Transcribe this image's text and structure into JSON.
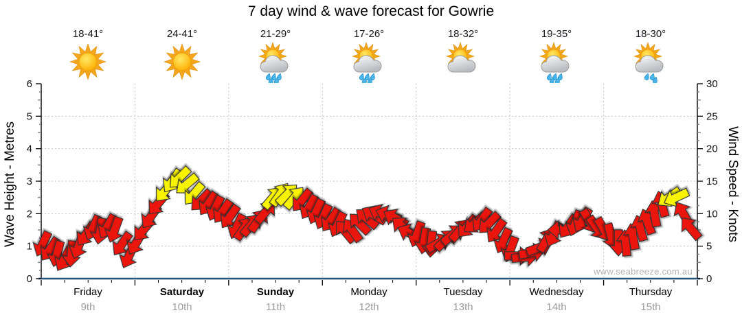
{
  "page": {
    "title": "7 day wind & wave forecast for Gowrie",
    "watermark": "www.seabreeze.com.au"
  },
  "days": [
    {
      "name": "Friday",
      "date": "9th",
      "temp": "18-41°",
      "icon": "sunny"
    },
    {
      "name": "Saturday",
      "date": "10th",
      "temp": "24-41°",
      "icon": "sunny"
    },
    {
      "name": "Sunday",
      "date": "11th",
      "temp": "21-29°",
      "icon": "showers"
    },
    {
      "name": "Monday",
      "date": "12th",
      "temp": "17-26°",
      "icon": "showers"
    },
    {
      "name": "Tuesday",
      "date": "13th",
      "temp": "18-32°",
      "icon": "partly-cloudy"
    },
    {
      "name": "Wednesday",
      "date": "14th",
      "temp": "19-35°",
      "icon": "showers"
    },
    {
      "name": "Thursday",
      "date": "15th",
      "temp": "18-30°",
      "icon": "showers-light"
    }
  ],
  "chart_data": {
    "type": "wind-arrow-timeseries",
    "title": "7 day wind & wave forecast for Gowrie",
    "left_axis": {
      "label": "Wave Height - Metres",
      "min": 0,
      "max": 6,
      "ticks": [
        0,
        1,
        2,
        3,
        4,
        5,
        6
      ]
    },
    "right_axis": {
      "label": "Wind Speed - Knots",
      "min": 0,
      "max": 30,
      "ticks": [
        0,
        5,
        10,
        15,
        20,
        25,
        30
      ]
    },
    "x_axis": {
      "categories": [
        "Friday 9th",
        "Saturday 10th",
        "Sunday 11th",
        "Monday 12th",
        "Tuesday 13th",
        "Wednesday 14th",
        "Thursday 15th"
      ],
      "weekend_bold": [
        "Saturday",
        "Sunday"
      ],
      "points_per_day": 13,
      "tick_divisions_per_day": 4
    },
    "grid": {
      "horizontal_dotted_at": [
        1,
        2,
        3,
        4,
        5
      ],
      "vertical_dotted_at_day_boundaries": true
    },
    "colors": {
      "R": "#ea120b",
      "Y": "#f8f300",
      "arrow_outline": "#333333",
      "axis_bottom": "#27547a",
      "gridline": "#c3c3c3",
      "tick_minor": "#8a8a8a"
    },
    "points_format": [
      "wind_speed_knots",
      "arrow_screen_direction_deg_cw_from_up",
      "color_key"
    ],
    "points": [
      [
        5.3,
        205,
        "R"
      ],
      [
        4.5,
        215,
        "R"
      ],
      [
        3.8,
        195,
        "R"
      ],
      [
        3.0,
        210,
        "R"
      ],
      [
        3.8,
        185,
        "R"
      ],
      [
        5.0,
        200,
        "R"
      ],
      [
        6.8,
        215,
        "R"
      ],
      [
        7.8,
        205,
        "R"
      ],
      [
        7.3,
        190,
        "R"
      ],
      [
        8.0,
        210,
        "R"
      ],
      [
        7.5,
        200,
        "R"
      ],
      [
        5.3,
        215,
        "R"
      ],
      [
        3.5,
        205,
        "R"
      ],
      [
        5.5,
        210,
        "R"
      ],
      [
        7.5,
        220,
        "R"
      ],
      [
        9.5,
        215,
        "R"
      ],
      [
        11.5,
        220,
        "R"
      ],
      [
        13.5,
        220,
        "Y"
      ],
      [
        15.0,
        215,
        "Y"
      ],
      [
        15.5,
        225,
        "Y"
      ],
      [
        14.5,
        230,
        "Y"
      ],
      [
        13.0,
        220,
        "Y"
      ],
      [
        12.0,
        225,
        "R"
      ],
      [
        11.5,
        215,
        "R"
      ],
      [
        10.8,
        205,
        "R"
      ],
      [
        10.3,
        215,
        "R"
      ],
      [
        9.5,
        215,
        "R"
      ],
      [
        8.0,
        205,
        "R"
      ],
      [
        7.8,
        35,
        "R"
      ],
      [
        8.3,
        40,
        "R"
      ],
      [
        9.0,
        35,
        "R"
      ],
      [
        10.3,
        40,
        "R"
      ],
      [
        12.5,
        40,
        "Y"
      ],
      [
        13.0,
        35,
        "Y"
      ],
      [
        13.0,
        45,
        "Y"
      ],
      [
        12.5,
        40,
        "Y"
      ],
      [
        12.0,
        220,
        "R"
      ],
      [
        11.0,
        210,
        "R"
      ],
      [
        10.3,
        205,
        "R"
      ],
      [
        9.5,
        205,
        "R"
      ],
      [
        9.0,
        215,
        "R"
      ],
      [
        8.3,
        205,
        "R"
      ],
      [
        7.3,
        320,
        "R"
      ],
      [
        7.5,
        325,
        "R"
      ],
      [
        8.5,
        315,
        "R"
      ],
      [
        9.3,
        310,
        "R"
      ],
      [
        9.8,
        300,
        "R"
      ],
      [
        10.0,
        295,
        "R"
      ],
      [
        9.8,
        290,
        "R"
      ],
      [
        9.3,
        300,
        "R"
      ],
      [
        8.0,
        310,
        "R"
      ],
      [
        7.0,
        295,
        "R"
      ],
      [
        6.8,
        200,
        "R"
      ],
      [
        5.8,
        190,
        "R"
      ],
      [
        5.3,
        185,
        "R"
      ],
      [
        5.5,
        60,
        "R"
      ],
      [
        6.0,
        45,
        "R"
      ],
      [
        6.8,
        50,
        "R"
      ],
      [
        7.5,
        40,
        "R"
      ],
      [
        8.0,
        220,
        "R"
      ],
      [
        8.5,
        230,
        "R"
      ],
      [
        9.0,
        215,
        "R"
      ],
      [
        8.5,
        225,
        "R"
      ],
      [
        7.3,
        215,
        "R"
      ],
      [
        5.8,
        205,
        "R"
      ],
      [
        4.5,
        200,
        "R"
      ],
      [
        3.5,
        90,
        "R"
      ],
      [
        3.3,
        85,
        "R"
      ],
      [
        4.0,
        80,
        "R"
      ],
      [
        4.8,
        70,
        "R"
      ],
      [
        6.0,
        30,
        "R"
      ],
      [
        6.8,
        205,
        "R"
      ],
      [
        7.5,
        270,
        "R"
      ],
      [
        8.0,
        215,
        "R"
      ],
      [
        8.5,
        200,
        "R"
      ],
      [
        9.0,
        210,
        "R"
      ],
      [
        8.8,
        150,
        "R"
      ],
      [
        7.8,
        145,
        "R"
      ],
      [
        7.5,
        150,
        "R"
      ],
      [
        6.5,
        165,
        "R"
      ],
      [
        5.5,
        180,
        "R"
      ],
      [
        5.5,
        355,
        "R"
      ],
      [
        6.5,
        350,
        "R"
      ],
      [
        7.8,
        345,
        "R"
      ],
      [
        8.8,
        340,
        "R"
      ],
      [
        10.0,
        350,
        "R"
      ],
      [
        11.5,
        345,
        "R"
      ],
      [
        12.5,
        235,
        "Y"
      ],
      [
        12.5,
        245,
        "Y"
      ],
      [
        10.0,
        330,
        "R"
      ],
      [
        7.8,
        320,
        "R"
      ]
    ]
  }
}
